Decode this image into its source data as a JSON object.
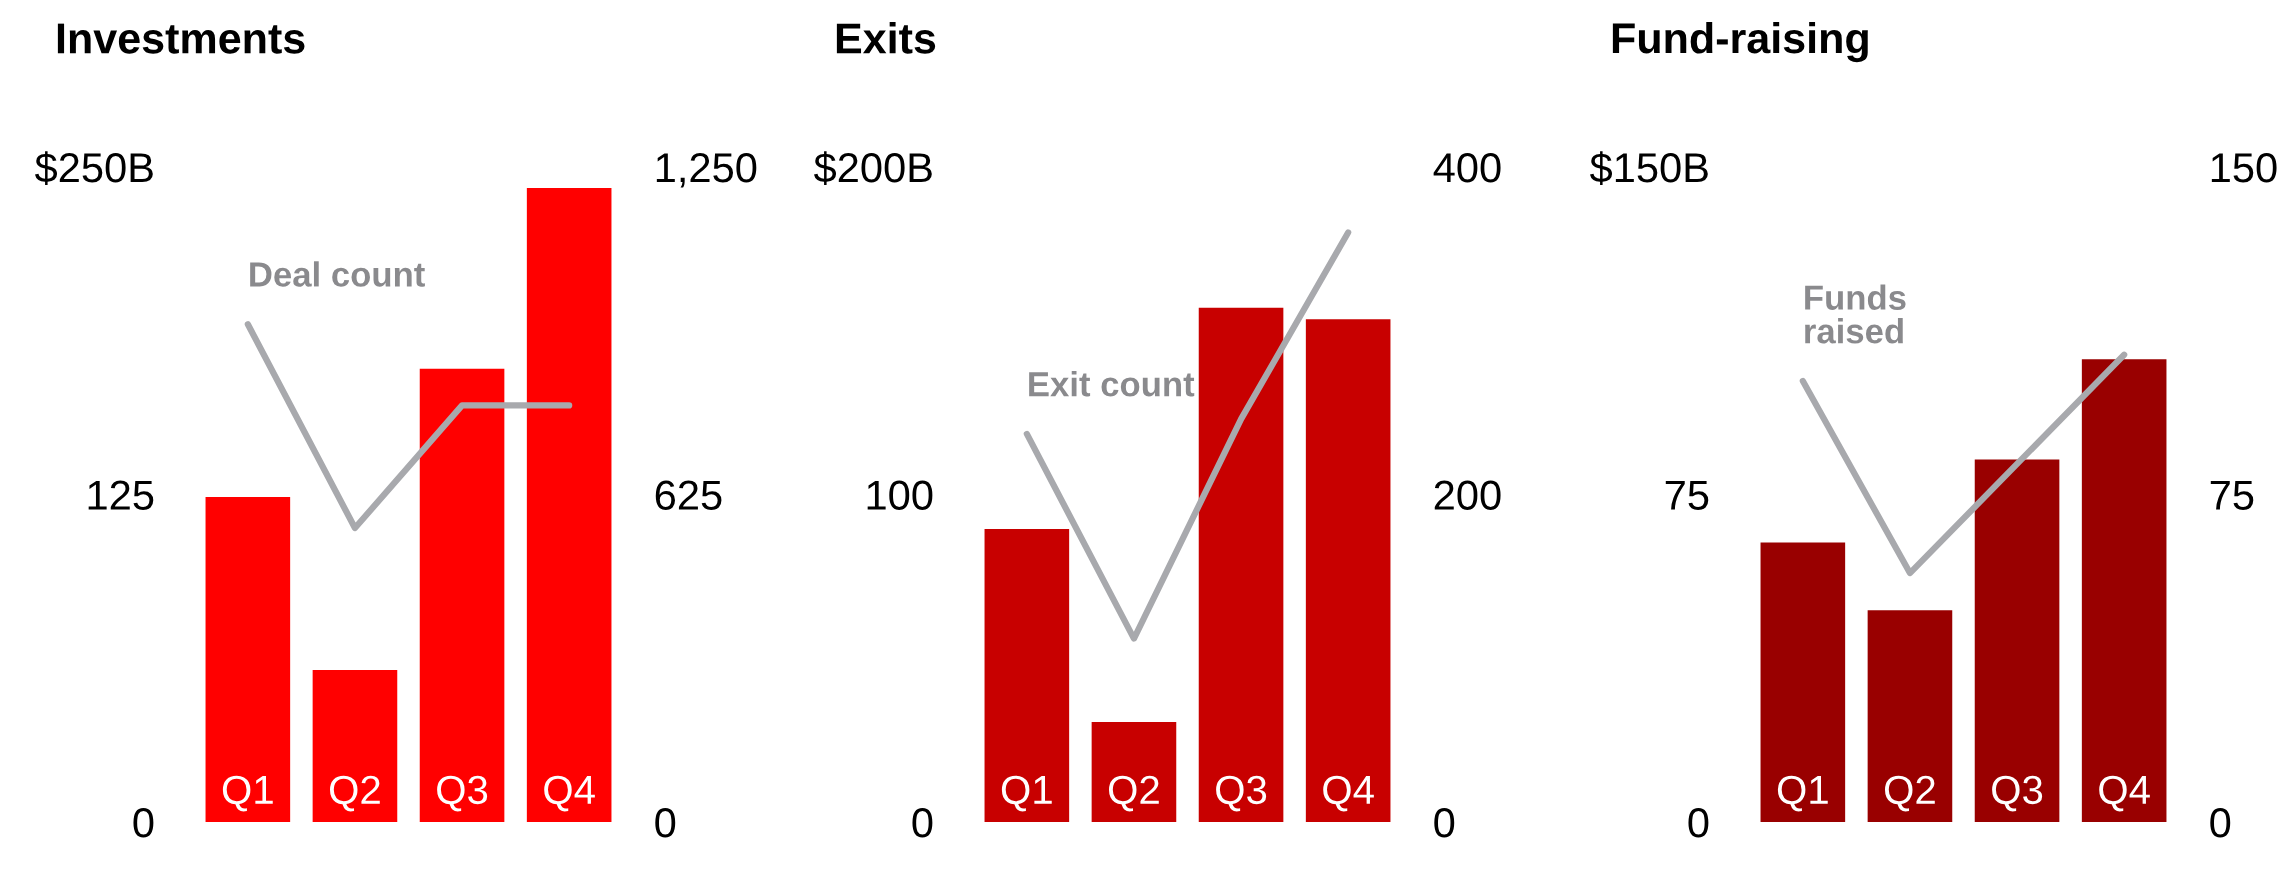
{
  "chart_data": [
    {
      "type": "bar",
      "title": "Investments",
      "categories": [
        "Q1",
        "Q2",
        "Q3",
        "Q4"
      ],
      "series": [
        {
          "color": "#ff0000",
          "values": [
            124,
            58,
            173,
            242
          ]
        },
        {
          "type": "line",
          "name": "Deal count",
          "color": "#a8a9ad",
          "axis": "y2",
          "values": [
            950,
            561,
            795,
            795
          ]
        }
      ],
      "ylim": [
        0,
        250
      ],
      "yticks": [
        0,
        125,
        {
          "value": 250,
          "label": "$250B"
        }
      ],
      "y2lim": [
        0,
        1250
      ],
      "y2ticks": [
        0,
        625,
        {
          "value": 1250,
          "label": "1,250"
        }
      ]
    },
    {
      "type": "bar",
      "title": "Exits",
      "categories": [
        "Q1",
        "Q2",
        "Q3",
        "Q4"
      ],
      "series": [
        {
          "color": "#c80000",
          "values": [
            89.5,
            30.5,
            157,
            153.5
          ]
        },
        {
          "type": "line",
          "name": "Exit count",
          "color": "#a8a9ad",
          "axis": "y2",
          "values": [
            237,
            112,
            246,
            360
          ]
        }
      ],
      "ylim": [
        0,
        200
      ],
      "yticks": [
        0,
        100,
        {
          "value": 200,
          "label": "$200B"
        }
      ],
      "y2lim": [
        0,
        400
      ],
      "y2ticks": [
        0,
        200,
        400
      ]
    },
    {
      "type": "bar",
      "title": "Fund-raising",
      "categories": [
        "Q1",
        "Q2",
        "Q3",
        "Q4"
      ],
      "series": [
        {
          "color": "#990000",
          "values": [
            64,
            48.5,
            83,
            106
          ]
        },
        {
          "type": "line",
          "name": "Funds\nraised",
          "color": "#a8a9ad",
          "axis": "y2",
          "values": [
            101,
            57,
            82,
            107
          ]
        }
      ],
      "ylim": [
        0,
        150
      ],
      "yticks": [
        0,
        75,
        {
          "value": 150,
          "label": "$150B"
        }
      ],
      "y2lim": [
        0,
        150
      ],
      "y2ticks": [
        0,
        75,
        150
      ]
    }
  ]
}
